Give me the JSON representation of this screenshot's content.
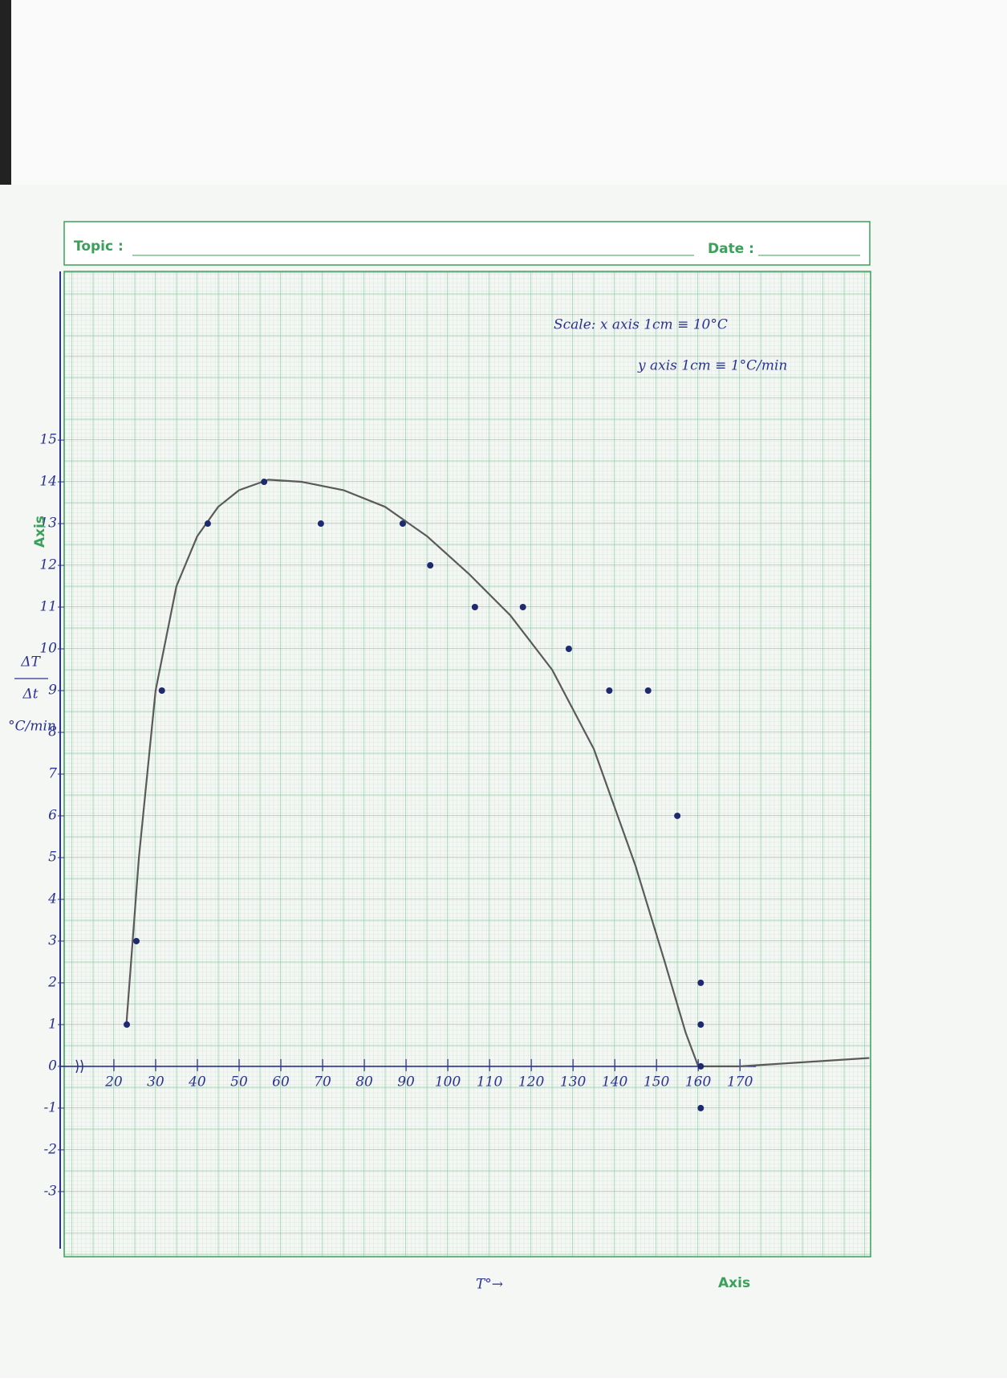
{
  "header": {
    "topic": "Topic :",
    "date": "Date :"
  },
  "chart_data": {
    "type": "scatter",
    "annotations": [
      "Scale: x axis 1cm ≡ 10°C",
      "y axis 1cm ≡ 1°C/min"
    ],
    "ylabel": [
      "ΔT",
      "Δt",
      "°C/min"
    ],
    "xlabel": "T°→",
    "axis_notes": [
      "Axis",
      "Axis"
    ],
    "xlim": [
      8.1,
      201.3
    ],
    "ylim": [
      -4.56,
      19.04
    ],
    "xticks": [
      20,
      30,
      40,
      50,
      60,
      70,
      80,
      90,
      100,
      110,
      120,
      130,
      140,
      150,
      160,
      170
    ],
    "yticks": [
      -3,
      -2,
      -1,
      0,
      1,
      2,
      3,
      4,
      5,
      6,
      7,
      8,
      9,
      10,
      11,
      12,
      13,
      14,
      15
    ],
    "points": {
      "color": "#1f2a6e",
      "x": [
        23.1,
        25.4,
        31.5,
        42.5,
        56,
        69.6,
        89.2,
        95.8,
        106.5,
        118,
        129,
        138.7,
        148,
        155,
        160.6,
        160.6,
        160.6,
        160.6
      ],
      "values": [
        1,
        3,
        9,
        13,
        14,
        13,
        13,
        12,
        11,
        11,
        10,
        9,
        9,
        6,
        2,
        1,
        0,
        -1
      ]
    },
    "curve": {
      "color": "#5a5a5a",
      "x": [
        23,
        26,
        30,
        35,
        40,
        45,
        50,
        57,
        65,
        75,
        85,
        95,
        105,
        115,
        125,
        135,
        145,
        152,
        157,
        160,
        170,
        201
      ],
      "values": [
        1,
        5,
        9,
        11.5,
        12.7,
        13.4,
        13.8,
        14.05,
        14,
        13.8,
        13.4,
        12.7,
        11.8,
        10.8,
        9.5,
        7.6,
        4.8,
        2.5,
        0.8,
        0,
        0,
        0.2
      ]
    }
  }
}
